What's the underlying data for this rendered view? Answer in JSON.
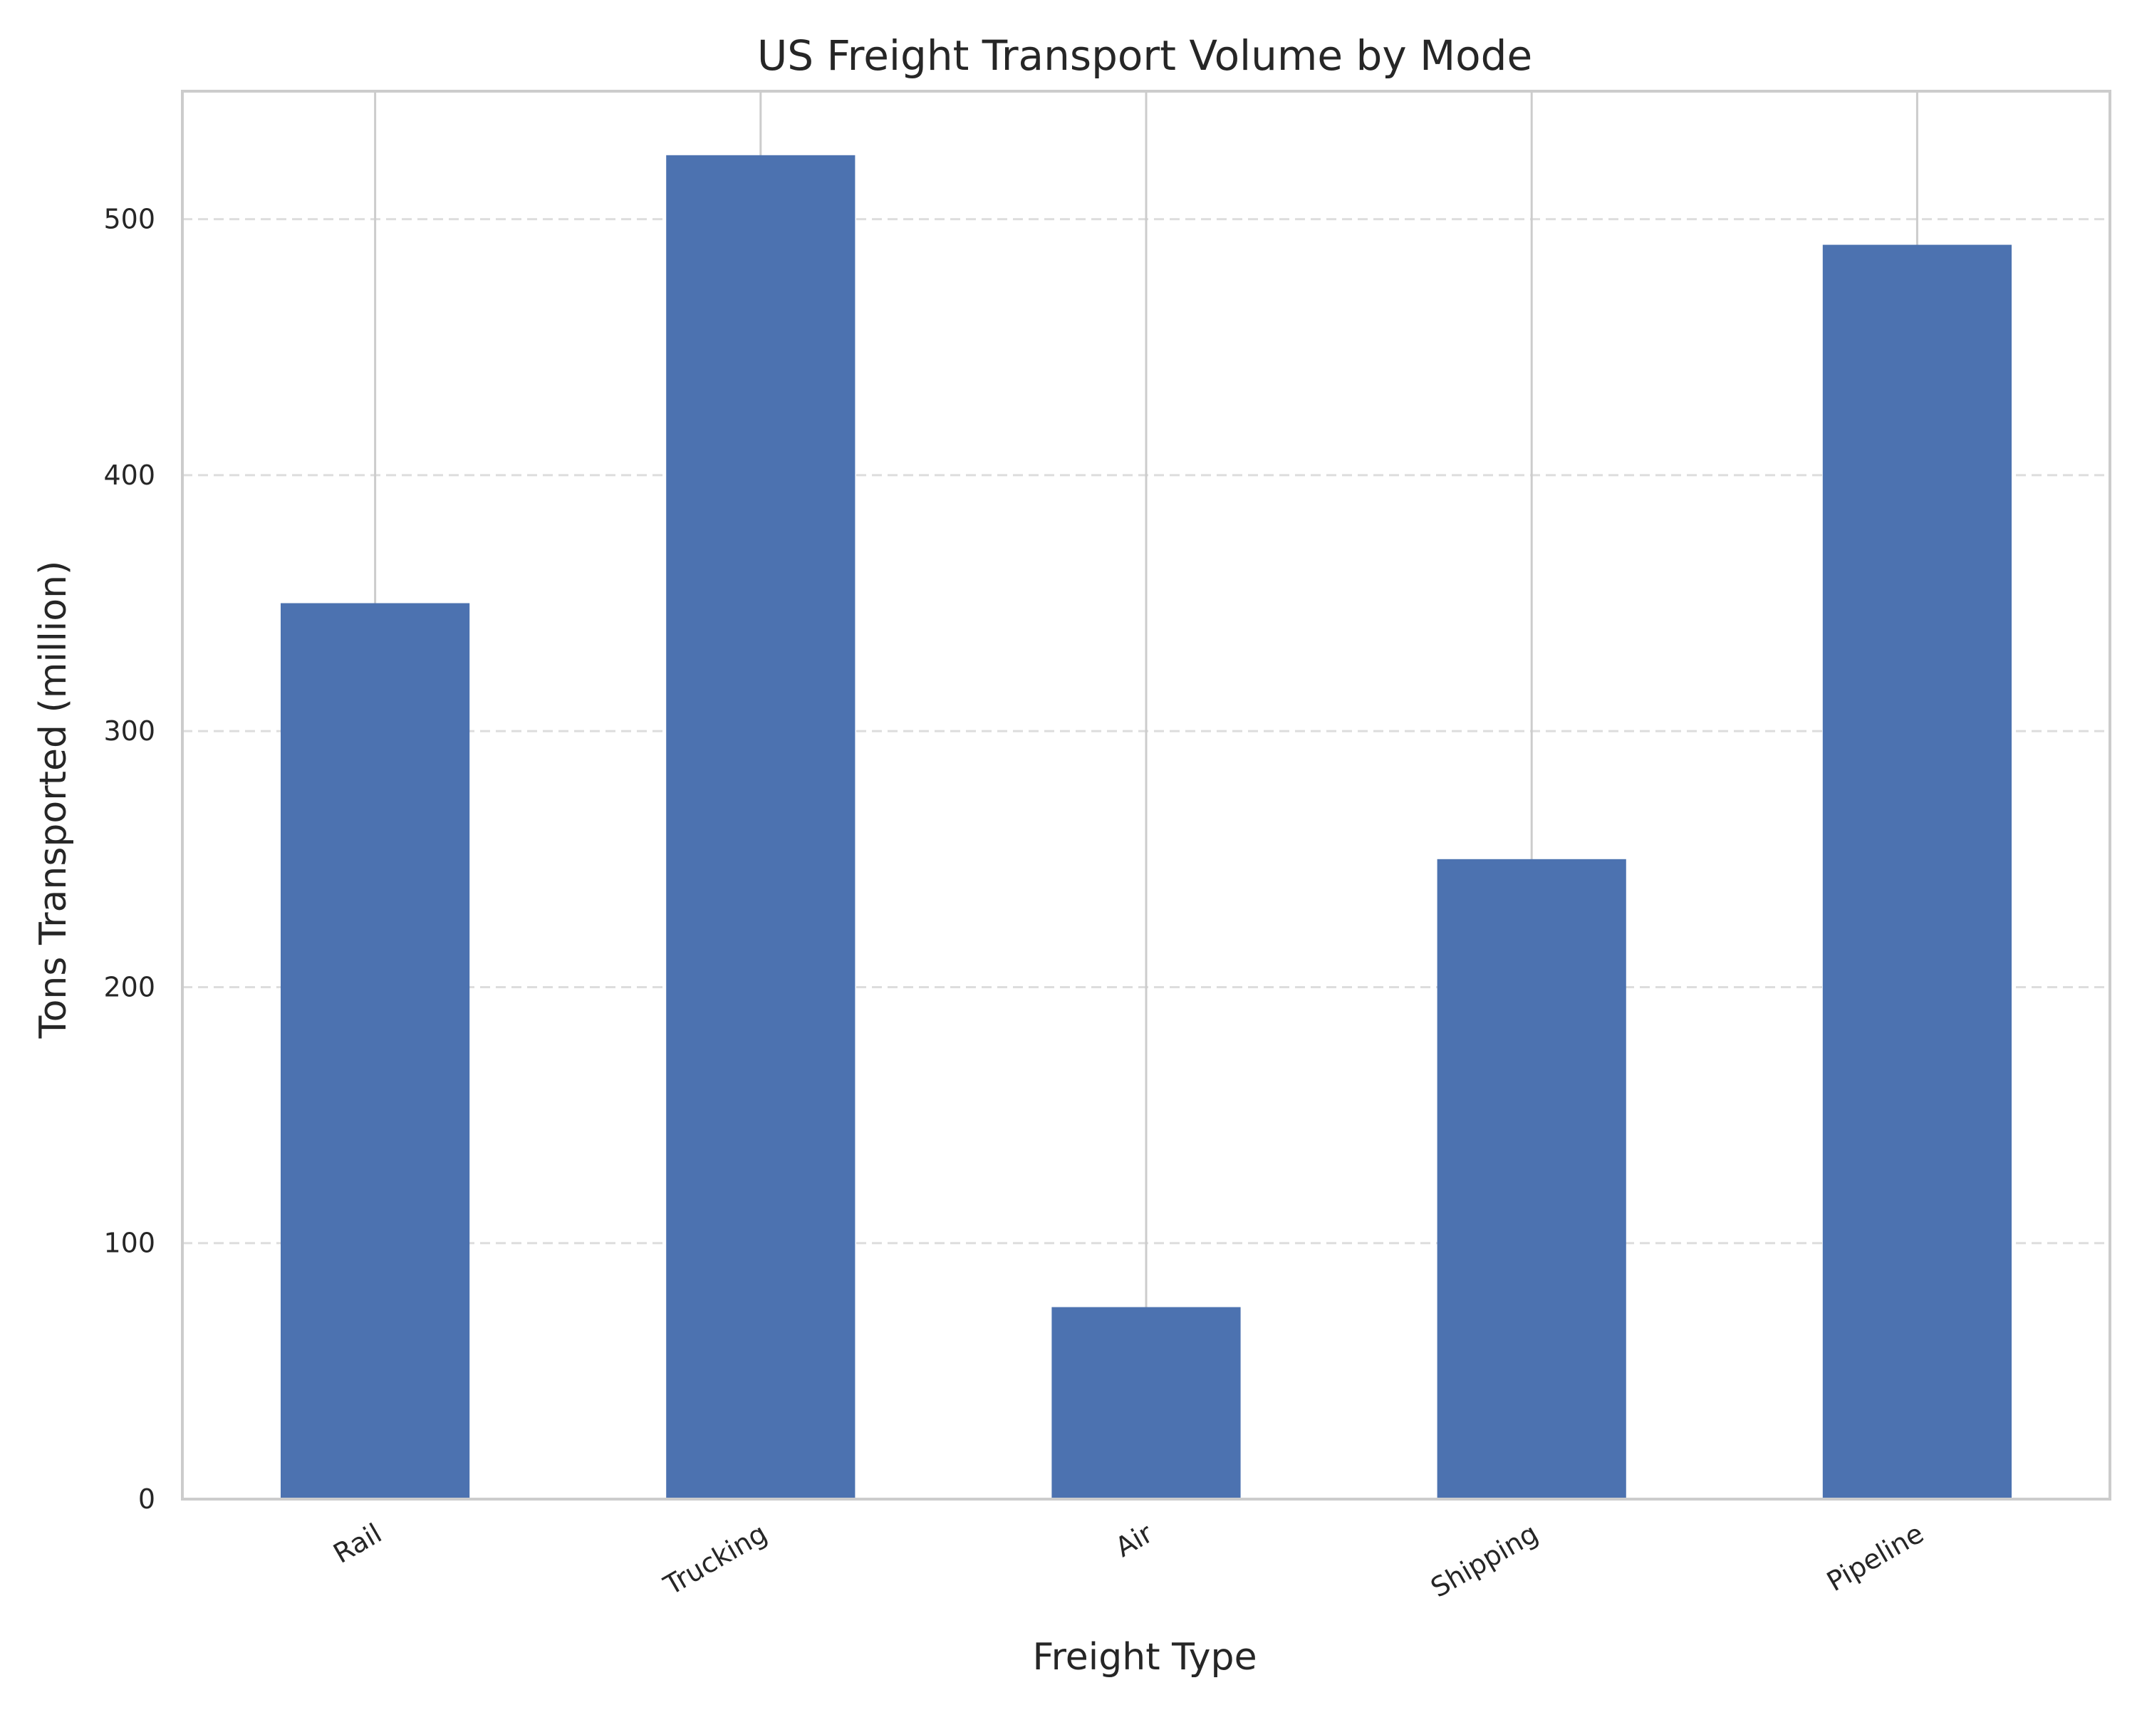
{
  "chart_data": {
    "type": "bar",
    "title": "US Freight Transport Volume by Mode",
    "xlabel": "Freight Type",
    "ylabel": "Tons Transported (million)",
    "categories": [
      "Rail",
      "Trucking",
      "Air",
      "Shipping",
      "Pipeline"
    ],
    "values": [
      350,
      525,
      75,
      250,
      490
    ],
    "ylim": [
      0,
      550
    ],
    "yticks": [
      0,
      100,
      200,
      300,
      400,
      500
    ],
    "ytick_labels": [
      "0",
      "100",
      "200",
      "300",
      "400",
      "500"
    ],
    "grid": "horizontal dashed",
    "legend": "none",
    "colors": {
      "bar": "#4c72b0",
      "grid": "#dddddd",
      "axis": "#cccccc",
      "text": "#262626"
    }
  }
}
